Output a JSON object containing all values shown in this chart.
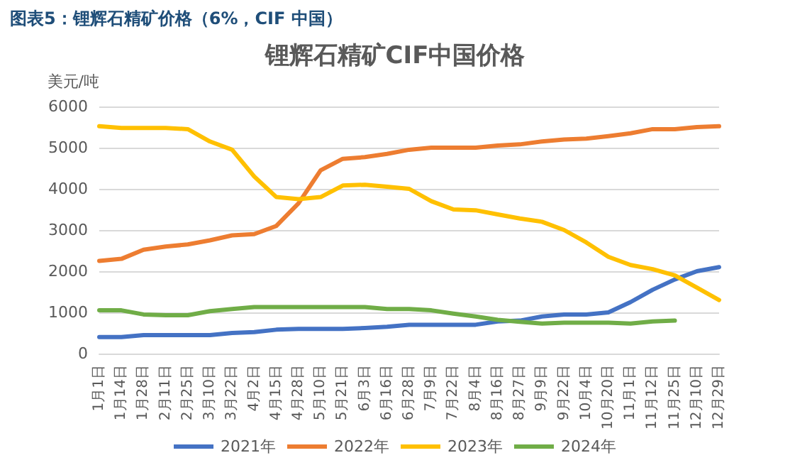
{
  "chart_data": {
    "type": "line",
    "title": "锂辉石精矿CIF中国价格",
    "ylabel": "美元/吨",
    "annotations": [
      "图表5：锂辉石精矿价格（6%，CIF 中国）"
    ],
    "categories": [
      "1月1日",
      "1月14日",
      "1月28日",
      "2月11日",
      "2月25日",
      "3月10日",
      "3月22日",
      "4月2日",
      "4月15日",
      "4月28日",
      "5月10日",
      "5月21日",
      "6月3日",
      "6月16日",
      "6月28日",
      "7月9日",
      "7月22日",
      "8月4日",
      "8月16日",
      "8月27日",
      "9月9日",
      "9月22日",
      "10月4日",
      "10月20日",
      "11月1日",
      "11月12日",
      "11月25日",
      "12月10日",
      "12月29日"
    ],
    "series": [
      {
        "name": "2021年",
        "color": "#4472c4",
        "values": [
          400,
          400,
          450,
          450,
          450,
          450,
          500,
          520,
          580,
          600,
          600,
          600,
          620,
          650,
          700,
          700,
          700,
          700,
          780,
          800,
          900,
          950,
          950,
          1000,
          1250,
          1550,
          1800,
          2000,
          2100
        ]
      },
      {
        "name": "2022年",
        "color": "#ed7d31",
        "values": [
          2250,
          2300,
          2520,
          2600,
          2650,
          2750,
          2870,
          2900,
          3100,
          3650,
          4450,
          4730,
          4770,
          4850,
          4950,
          5000,
          5000,
          5000,
          5050,
          5080,
          5150,
          5200,
          5220,
          5280,
          5350,
          5450,
          5450,
          5500,
          5520
        ]
      },
      {
        "name": "2023年",
        "color": "#ffc000",
        "values": [
          5520,
          5480,
          5480,
          5480,
          5450,
          5150,
          4950,
          4300,
          3800,
          3750,
          3800,
          4080,
          4100,
          4050,
          4000,
          3700,
          3500,
          3480,
          3380,
          3280,
          3200,
          3000,
          2700,
          2350,
          2150,
          2050,
          1900,
          1600,
          1300
        ]
      },
      {
        "name": "2024年",
        "color": "#70ad47",
        "values": [
          1050,
          1050,
          950,
          930,
          930,
          1030,
          1080,
          1130,
          1130,
          1130,
          1130,
          1130,
          1130,
          1080,
          1080,
          1050,
          970,
          900,
          820,
          770,
          730,
          750,
          750,
          750,
          730,
          780,
          800,
          null,
          null
        ]
      }
    ],
    "ylim": [
      0,
      6000
    ],
    "yticks": [
      0,
      1000,
      2000,
      3000,
      4000,
      5000,
      6000
    ],
    "grid": "y",
    "legend": "bottom",
    "marker": "none",
    "line_style": "solid"
  }
}
